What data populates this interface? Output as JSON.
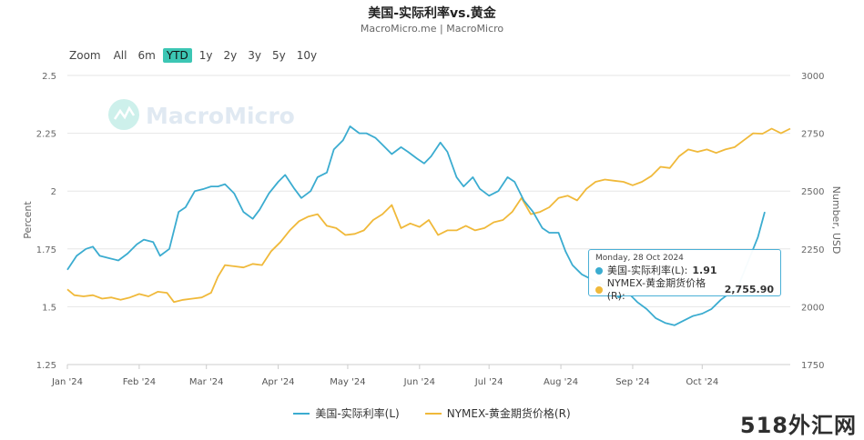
{
  "header": {
    "title": "美国-实际利率vs.黄金",
    "subtitle": "MacroMicro.me | MacroMicro"
  },
  "zoom": {
    "label": "Zoom",
    "buttons": [
      "All",
      "6m",
      "YTD",
      "1y",
      "2y",
      "3y",
      "5y",
      "10y"
    ],
    "active": "YTD"
  },
  "watermark_logo": "MacroMicro",
  "corner_watermark": "518外汇网",
  "tooltip": {
    "date": "Monday, 28 Oct 2024",
    "rows": [
      {
        "label": "美国-实际利率(L): ",
        "value": "1.91",
        "color": "#3bacd0"
      },
      {
        "label": "NYMEX-黄金期货价格(R): ",
        "value": "2,755.90",
        "color": "#f0b93a"
      }
    ]
  },
  "chart_data": {
    "type": "line",
    "x_ticks": [
      "Jan '24",
      "Feb '24",
      "Mar '24",
      "Apr '24",
      "May '24",
      "Jun '24",
      "Jul '24",
      "Aug '24",
      "Sep '24",
      "Oct '24"
    ],
    "xlim": [
      "2024-01-01",
      "2024-11-08"
    ],
    "y_left": {
      "label": "Percent",
      "ticks": [
        "1.25",
        "1.5",
        "1.75",
        "2",
        "2.25",
        "2.5"
      ],
      "ylim": [
        1.25,
        2.5
      ]
    },
    "y_right": {
      "label": "Number, USD",
      "ticks": [
        "1750",
        "2000",
        "2250",
        "2500",
        "2750",
        "3000"
      ],
      "ylim": [
        1750,
        3000
      ]
    },
    "grid": true,
    "legend_position": "bottom-center",
    "series": [
      {
        "name": "美国-实际利率(L)",
        "axis": "left",
        "color": "#3bacd0",
        "points": [
          [
            "2024-01-01",
            1.66
          ],
          [
            "2024-01-05",
            1.72
          ],
          [
            "2024-01-09",
            1.75
          ],
          [
            "2024-01-12",
            1.76
          ],
          [
            "2024-01-15",
            1.72
          ],
          [
            "2024-01-19",
            1.71
          ],
          [
            "2024-01-23",
            1.7
          ],
          [
            "2024-01-27",
            1.73
          ],
          [
            "2024-01-31",
            1.77
          ],
          [
            "2024-02-03",
            1.79
          ],
          [
            "2024-02-07",
            1.78
          ],
          [
            "2024-02-10",
            1.72
          ],
          [
            "2024-02-14",
            1.75
          ],
          [
            "2024-02-18",
            1.91
          ],
          [
            "2024-02-21",
            1.93
          ],
          [
            "2024-02-25",
            2.0
          ],
          [
            "2024-02-29",
            2.01
          ],
          [
            "2024-03-03",
            2.02
          ],
          [
            "2024-03-06",
            2.02
          ],
          [
            "2024-03-09",
            2.03
          ],
          [
            "2024-03-13",
            1.99
          ],
          [
            "2024-03-17",
            1.91
          ],
          [
            "2024-03-21",
            1.88
          ],
          [
            "2024-03-24",
            1.92
          ],
          [
            "2024-03-28",
            1.99
          ],
          [
            "2024-04-01",
            2.04
          ],
          [
            "2024-04-04",
            2.07
          ],
          [
            "2024-04-08",
            2.01
          ],
          [
            "2024-04-11",
            1.97
          ],
          [
            "2024-04-15",
            2.0
          ],
          [
            "2024-04-18",
            2.06
          ],
          [
            "2024-04-22",
            2.08
          ],
          [
            "2024-04-25",
            2.18
          ],
          [
            "2024-04-29",
            2.22
          ],
          [
            "2024-05-02",
            2.28
          ],
          [
            "2024-05-06",
            2.25
          ],
          [
            "2024-05-09",
            2.25
          ],
          [
            "2024-05-13",
            2.23
          ],
          [
            "2024-05-16",
            2.2
          ],
          [
            "2024-05-20",
            2.16
          ],
          [
            "2024-05-24",
            2.19
          ],
          [
            "2024-05-27",
            2.17
          ],
          [
            "2024-05-31",
            2.14
          ],
          [
            "2024-06-03",
            2.12
          ],
          [
            "2024-06-06",
            2.15
          ],
          [
            "2024-06-10",
            2.21
          ],
          [
            "2024-06-13",
            2.17
          ],
          [
            "2024-06-17",
            2.06
          ],
          [
            "2024-06-20",
            2.02
          ],
          [
            "2024-06-24",
            2.06
          ],
          [
            "2024-06-27",
            2.01
          ],
          [
            "2024-07-01",
            1.98
          ],
          [
            "2024-07-05",
            2.0
          ],
          [
            "2024-07-09",
            2.06
          ],
          [
            "2024-07-12",
            2.04
          ],
          [
            "2024-07-16",
            1.96
          ],
          [
            "2024-07-20",
            1.91
          ],
          [
            "2024-07-24",
            1.84
          ],
          [
            "2024-07-27",
            1.82
          ],
          [
            "2024-07-31",
            1.82
          ],
          [
            "2024-08-03",
            1.74
          ],
          [
            "2024-08-06",
            1.68
          ],
          [
            "2024-08-10",
            1.64
          ],
          [
            "2024-08-14",
            1.62
          ],
          [
            "2024-08-18",
            1.6
          ],
          [
            "2024-08-22",
            1.58
          ],
          [
            "2024-08-26",
            1.54
          ],
          [
            "2024-08-30",
            1.56
          ],
          [
            "2024-09-03",
            1.52
          ],
          [
            "2024-09-07",
            1.49
          ],
          [
            "2024-09-11",
            1.45
          ],
          [
            "2024-09-15",
            1.43
          ],
          [
            "2024-09-19",
            1.42
          ],
          [
            "2024-09-23",
            1.44
          ],
          [
            "2024-09-27",
            1.46
          ],
          [
            "2024-10-01",
            1.47
          ],
          [
            "2024-10-05",
            1.49
          ],
          [
            "2024-10-09",
            1.53
          ],
          [
            "2024-10-13",
            1.56
          ],
          [
            "2024-10-17",
            1.6
          ],
          [
            "2024-10-21",
            1.7
          ],
          [
            "2024-10-25",
            1.8
          ],
          [
            "2024-10-28",
            1.91
          ]
        ]
      },
      {
        "name": "NYMEX-黄金期货价格(R)",
        "axis": "right",
        "color": "#f0b93a",
        "points": [
          [
            "2024-01-01",
            2075
          ],
          [
            "2024-01-04",
            2050
          ],
          [
            "2024-01-08",
            2045
          ],
          [
            "2024-01-12",
            2050
          ],
          [
            "2024-01-16",
            2035
          ],
          [
            "2024-01-20",
            2040
          ],
          [
            "2024-01-24",
            2030
          ],
          [
            "2024-01-28",
            2040
          ],
          [
            "2024-02-01",
            2055
          ],
          [
            "2024-02-05",
            2045
          ],
          [
            "2024-02-09",
            2065
          ],
          [
            "2024-02-13",
            2060
          ],
          [
            "2024-02-16",
            2020
          ],
          [
            "2024-02-20",
            2030
          ],
          [
            "2024-02-24",
            2035
          ],
          [
            "2024-02-28",
            2040
          ],
          [
            "2024-03-03",
            2060
          ],
          [
            "2024-03-06",
            2130
          ],
          [
            "2024-03-09",
            2180
          ],
          [
            "2024-03-13",
            2175
          ],
          [
            "2024-03-17",
            2170
          ],
          [
            "2024-03-21",
            2185
          ],
          [
            "2024-03-25",
            2180
          ],
          [
            "2024-03-29",
            2240
          ],
          [
            "2024-04-02",
            2280
          ],
          [
            "2024-04-06",
            2330
          ],
          [
            "2024-04-10",
            2370
          ],
          [
            "2024-04-14",
            2390
          ],
          [
            "2024-04-18",
            2400
          ],
          [
            "2024-04-22",
            2350
          ],
          [
            "2024-04-26",
            2340
          ],
          [
            "2024-04-30",
            2310
          ],
          [
            "2024-05-04",
            2315
          ],
          [
            "2024-05-08",
            2330
          ],
          [
            "2024-05-12",
            2375
          ],
          [
            "2024-05-16",
            2400
          ],
          [
            "2024-05-20",
            2440
          ],
          [
            "2024-05-24",
            2340
          ],
          [
            "2024-05-28",
            2360
          ],
          [
            "2024-06-01",
            2345
          ],
          [
            "2024-06-05",
            2375
          ],
          [
            "2024-06-09",
            2310
          ],
          [
            "2024-06-13",
            2330
          ],
          [
            "2024-06-17",
            2330
          ],
          [
            "2024-06-21",
            2350
          ],
          [
            "2024-06-25",
            2330
          ],
          [
            "2024-06-29",
            2340
          ],
          [
            "2024-07-03",
            2365
          ],
          [
            "2024-07-07",
            2375
          ],
          [
            "2024-07-11",
            2410
          ],
          [
            "2024-07-15",
            2470
          ],
          [
            "2024-07-19",
            2400
          ],
          [
            "2024-07-23",
            2410
          ],
          [
            "2024-07-27",
            2430
          ],
          [
            "2024-07-31",
            2470
          ],
          [
            "2024-08-04",
            2480
          ],
          [
            "2024-08-08",
            2460
          ],
          [
            "2024-08-12",
            2510
          ],
          [
            "2024-08-16",
            2540
          ],
          [
            "2024-08-20",
            2550
          ],
          [
            "2024-08-24",
            2545
          ],
          [
            "2024-08-28",
            2540
          ],
          [
            "2024-09-01",
            2525
          ],
          [
            "2024-09-05",
            2540
          ],
          [
            "2024-09-09",
            2565
          ],
          [
            "2024-09-13",
            2605
          ],
          [
            "2024-09-17",
            2600
          ],
          [
            "2024-09-21",
            2650
          ],
          [
            "2024-09-25",
            2680
          ],
          [
            "2024-09-29",
            2670
          ],
          [
            "2024-10-03",
            2680
          ],
          [
            "2024-10-07",
            2665
          ],
          [
            "2024-10-11",
            2680
          ],
          [
            "2024-10-15",
            2690
          ],
          [
            "2024-10-19",
            2720
          ],
          [
            "2024-10-23",
            2750
          ],
          [
            "2024-10-27",
            2748
          ],
          [
            "2024-10-31",
            2770
          ],
          [
            "2024-11-04",
            2750
          ],
          [
            "2024-11-08",
            2770
          ]
        ]
      }
    ]
  }
}
